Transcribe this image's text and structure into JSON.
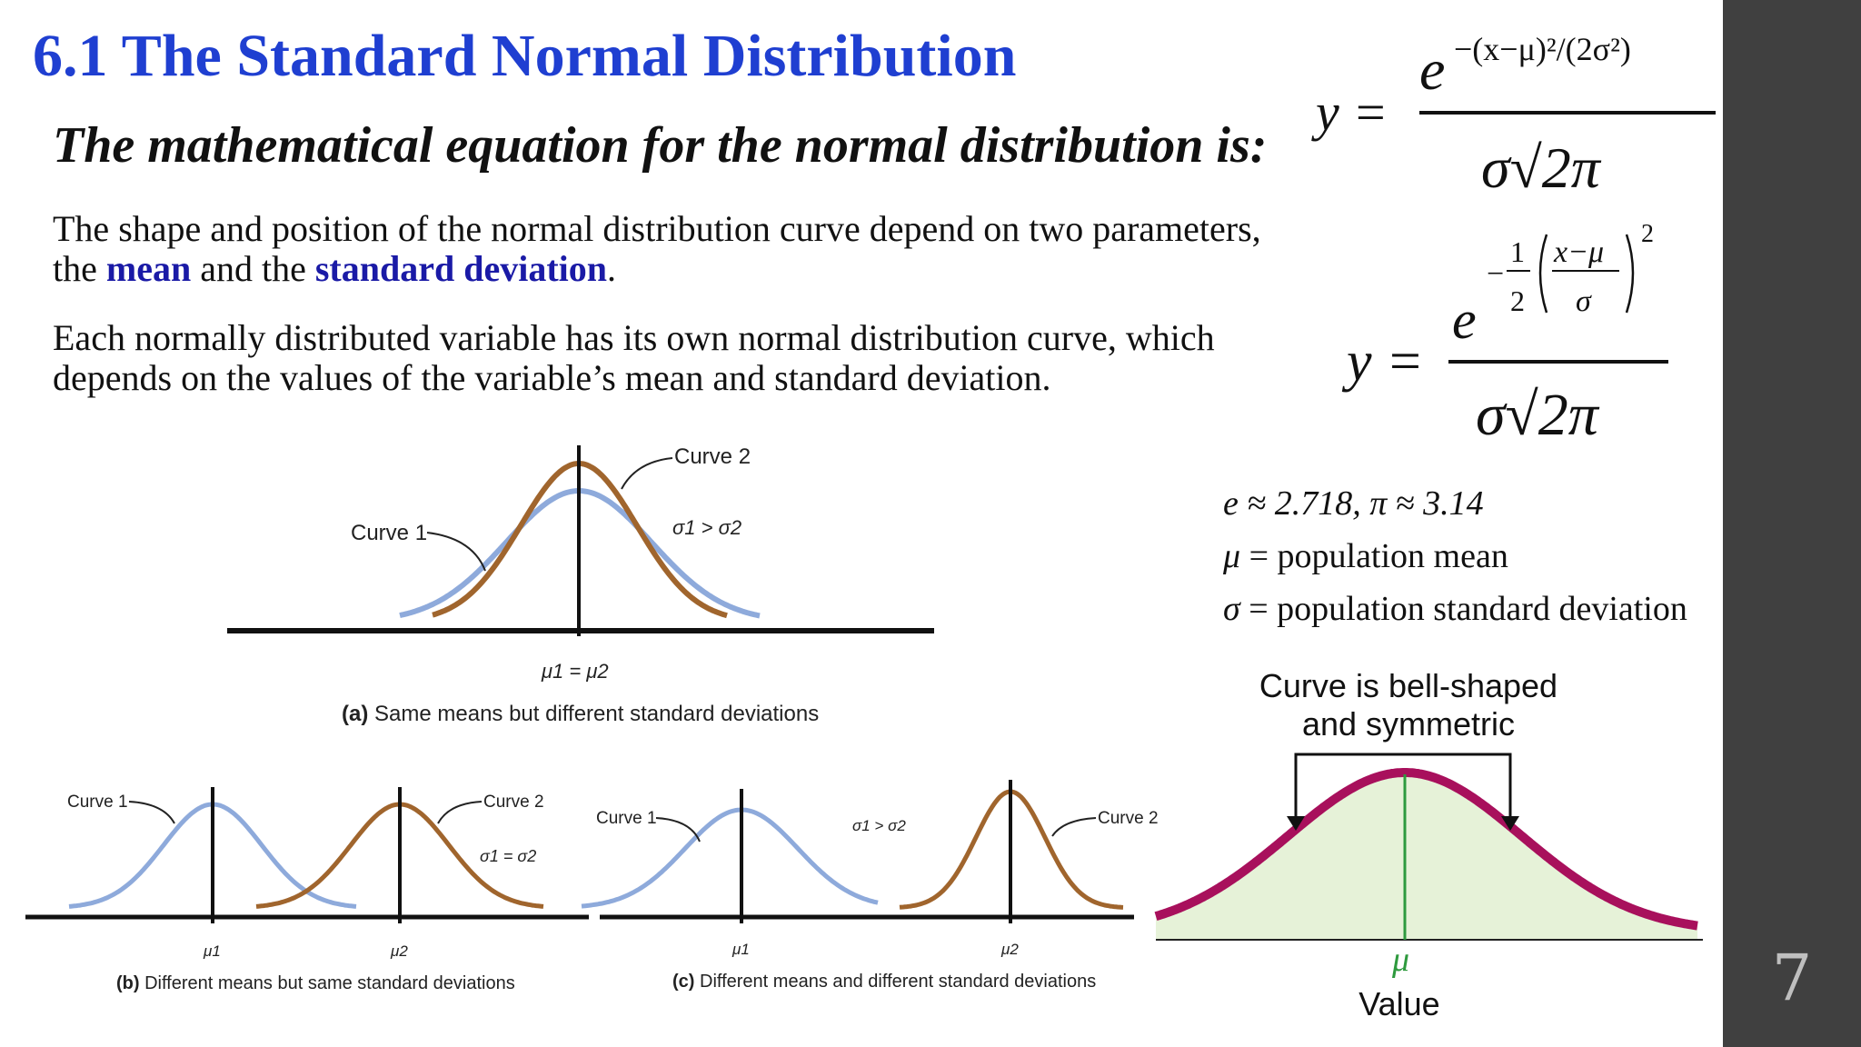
{
  "slide": {
    "title": "6.1  The Standard Normal Distribution",
    "subtitle": "The mathematical equation for the normal distribution is:",
    "para1_a": "The shape and position of the normal distribution curve depend on two parameters,",
    "para1_b_prefix": "the ",
    "para1_mean": "mean",
    "para1_and": " and the ",
    "para1_sd": "standard deviation",
    "para1_end": ".",
    "para2_a": "Each normally distributed variable has its own normal distribution curve, which",
    "para2_b": "depends on the values of the variable’s mean and standard deviation.",
    "slide_number": "7"
  },
  "formulas": {
    "f1_y": "y =",
    "f1_num_e": "e",
    "f1_exp": "−(x−μ)²/(2σ²)",
    "f1_den": "σ√2π",
    "f2_y": "y =",
    "f2_num_e": "e",
    "f2_minus": "−",
    "f2_half_num": "1",
    "f2_half_den": "2",
    "f2_frac_num": "x−μ",
    "f2_frac_den": "σ",
    "f2_sq": "2",
    "f2_den": "σ√2π"
  },
  "definitions": {
    "d1_sym": "e ≈ 2.718, π ≈ 3.14",
    "d2_sym": "μ",
    "d2_text": " = population mean",
    "d3_sym": "σ",
    "d3_text": " = population standard deviation"
  },
  "figure_a": {
    "curve1": "Curve 1",
    "curve2": "Curve 2",
    "relation": "σ1 > σ2",
    "axis_label": "μ1 = μ2",
    "caption_tag": "(a)",
    "caption": " Same means but different standard deviations"
  },
  "figure_b": {
    "curve1": "Curve 1",
    "curve2": "Curve 2",
    "relation": "σ1 = σ2",
    "mu1": "μ1",
    "mu2": "μ2",
    "caption_tag": "(b)",
    "caption": " Different means but same standard deviations"
  },
  "figure_c": {
    "curve1": "Curve 1",
    "curve2": "Curve 2",
    "relation": "σ1 > σ2",
    "mu1": "μ1",
    "mu2": "μ2",
    "caption_tag": "(c)",
    "caption": " Different means and different standard deviations"
  },
  "bell": {
    "title_line1": "Curve is bell-shaped",
    "title_line2": "and symmetric",
    "mu": "μ",
    "value": "Value"
  },
  "colors": {
    "title_blue": "#1f3fd1",
    "keyword_blue": "#1a1aa6",
    "curve_blue": "#8eaadb",
    "curve_brown": "#a0652d",
    "bell_magenta": "#a8105c",
    "bell_fill": "#e6f2d8",
    "mean_green": "#2e9a3e",
    "sidebar": "#404040"
  }
}
